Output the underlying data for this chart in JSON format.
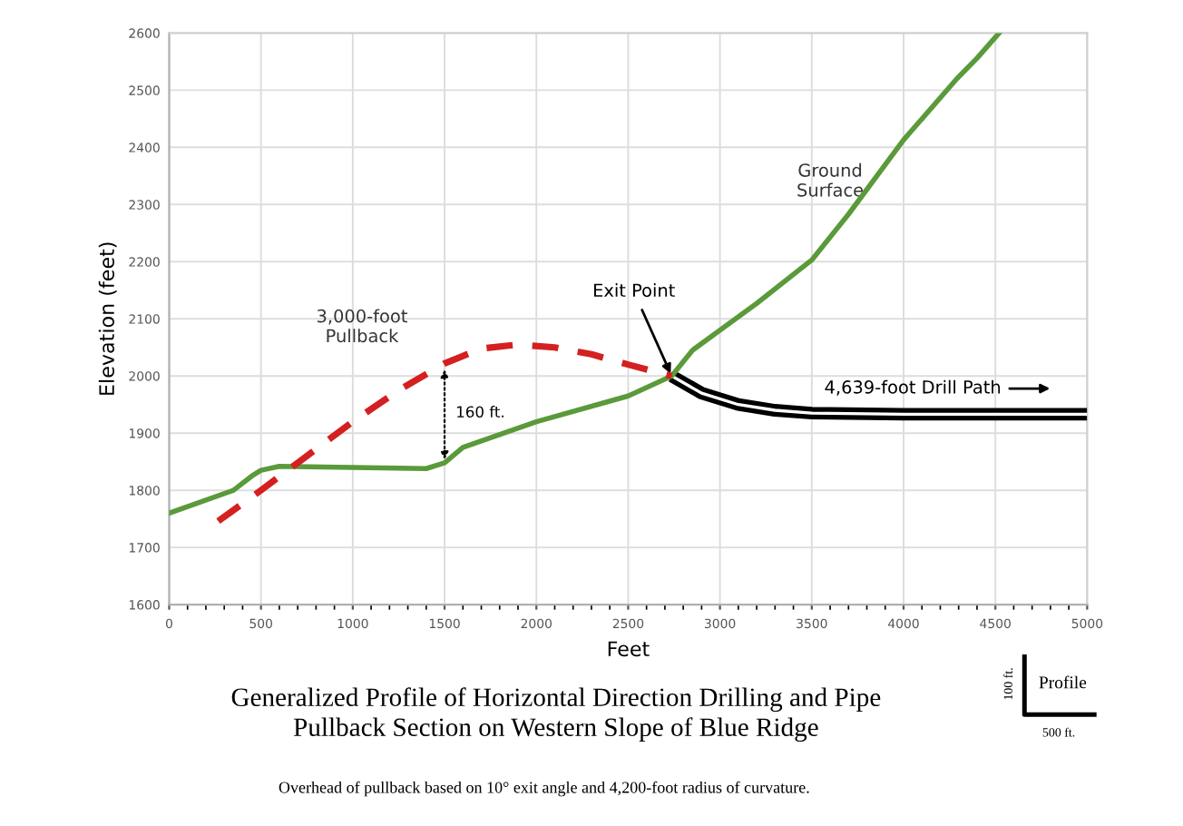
{
  "chart_data": {
    "type": "line",
    "title": "Generalized Profile of Horizontal Direction Drilling and Pipe\nPullback Section on Western Slope of Blue Ridge",
    "xlabel": "Feet",
    "ylabel": "Elevation (feet)",
    "xlim": [
      0,
      5000
    ],
    "xticks": [
      0,
      500,
      1000,
      1500,
      2000,
      2500,
      3000,
      3500,
      4000,
      4500,
      5000
    ],
    "ylim": [
      1600,
      2600
    ],
    "yticks": [
      1600,
      1700,
      1800,
      1900,
      2000,
      2100,
      2200,
      2300,
      2400,
      2500,
      2600
    ],
    "grid": true,
    "series": [
      {
        "color": "#5a9a3a",
        "line_style": "solid",
        "x": [
          0,
          350,
          450,
          500,
          600,
          1000,
          1400,
          1500,
          1600,
          2000,
          2500,
          2737,
          2850,
          3000,
          3200,
          3500,
          3700,
          4000,
          4290,
          4400,
          4520
        ],
        "values": [
          1760,
          1800,
          1825,
          1835,
          1842,
          1840,
          1838,
          1848,
          1875,
          1920,
          1965,
          2000,
          2045,
          2080,
          2127,
          2203,
          2283,
          2413,
          2520,
          2556,
          2600
        ]
      },
      {
        "color": "#d42020",
        "line_style": "dashed",
        "x": [
          267,
          500,
          750,
          1000,
          1250,
          1500,
          1700,
          1900,
          2100,
          2300,
          2500,
          2737
        ],
        "values": [
          1746,
          1800,
          1860,
          1920,
          1975,
          2022,
          2048,
          2055,
          2050,
          2038,
          2020,
          2000
        ]
      },
      {
        "color": "#000000",
        "line_style": "solid",
        "x": [
          2737,
          2900,
          3100,
          3300,
          3500,
          4000,
          5000
        ],
        "values": [
          2000,
          1970,
          1950,
          1940,
          1935,
          1933,
          1933
        ]
      }
    ],
    "annotations": [
      "3,000-foot\nPullback",
      "160 ft.",
      {
        "text": "Exit Point",
        "x": 2737,
        "y": 2000
      },
      "Ground\nSurface",
      "4,639-foot Drill Path",
      "Overhead of pullback based on 10° exit angle and 4,200-foot radius of curvature.",
      "Profile",
      "100 ft.",
      "500 ft."
    ]
  }
}
